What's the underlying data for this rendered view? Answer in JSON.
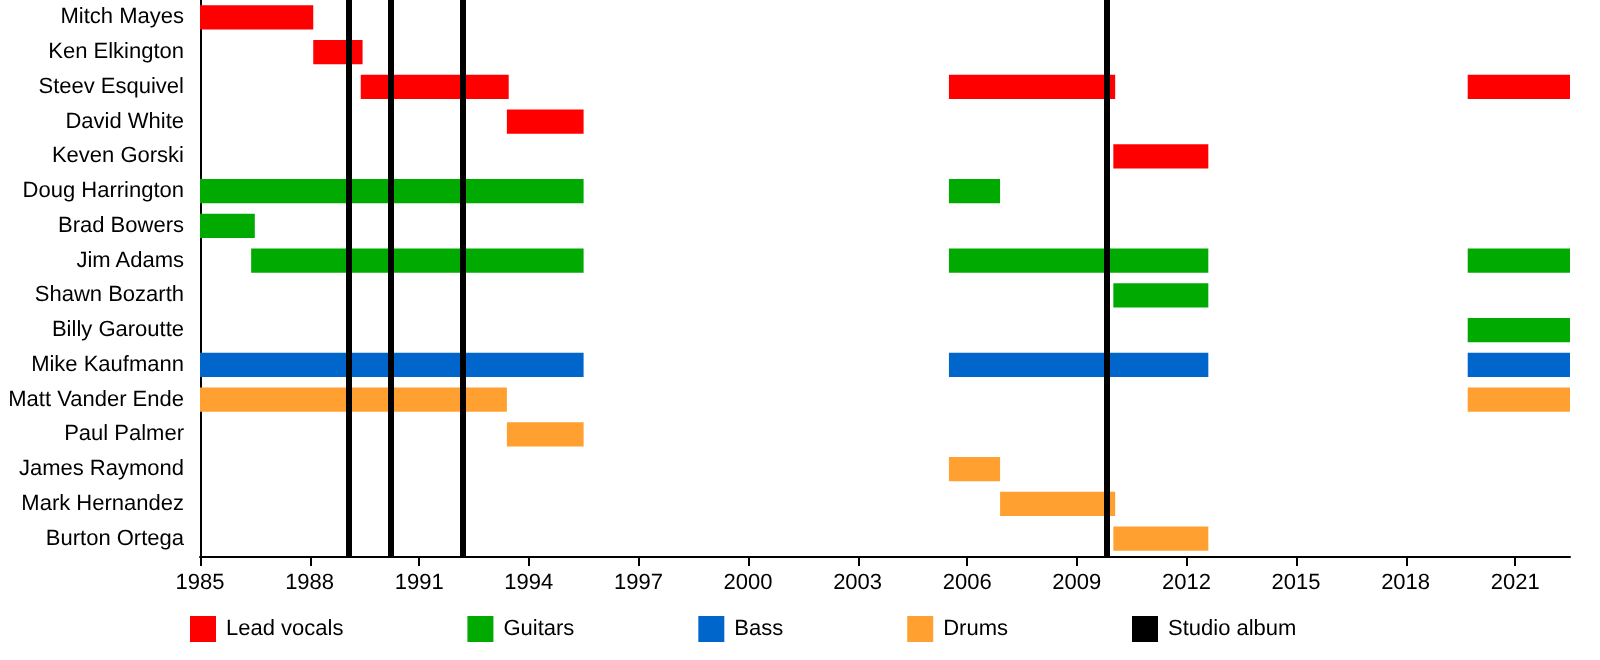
{
  "chart_data": {
    "type": "bar",
    "orientation": "horizontal",
    "categories": [
      "Mitch Mayes",
      "Ken Elkington",
      "Steev Esquivel",
      "David White",
      "Keven Gorski",
      "Doug Harrington",
      "Brad Bowers",
      "Jim Adams",
      "Shawn Bozarth",
      "Billy Garoutte",
      "Mike Kaufmann",
      "Matt Vander Ende",
      "Paul Palmer",
      "James Raymond",
      "Mark Hernandez",
      "Burton Ortega"
    ],
    "series": [
      {
        "name": "Lead vocals",
        "color": "#ff0000",
        "base": [
          1985,
          1988.1,
          1989.4,
          1993.4,
          null,
          null,
          null,
          null,
          null,
          null,
          null,
          null,
          null,
          null,
          null,
          null
        ],
        "values": [
          3.1,
          1.35,
          4.05,
          2.1,
          null,
          null,
          null,
          null,
          null,
          null,
          null,
          null,
          null,
          null,
          null,
          null
        ]
      },
      {
        "color": "#ff0000",
        "base": [
          null,
          null,
          2005.5,
          null,
          2010,
          null,
          null,
          null,
          null,
          null,
          null,
          null,
          null,
          null,
          null,
          null
        ],
        "values": [
          null,
          null,
          4.55,
          null,
          2.6,
          null,
          null,
          null,
          null,
          null,
          null,
          null,
          null,
          null,
          null,
          null
        ]
      },
      {
        "color": "#ff0000",
        "base": [
          null,
          null,
          2019.7,
          null,
          null,
          null,
          null,
          null,
          null,
          null,
          null,
          null,
          null,
          null,
          null,
          null
        ],
        "values": [
          null,
          null,
          2.8,
          null,
          null,
          null,
          null,
          null,
          null,
          null,
          null,
          null,
          null,
          null,
          null,
          null
        ]
      },
      {
        "name": "Guitars",
        "color": "#00aa00",
        "base": [
          null,
          null,
          null,
          null,
          null,
          1985,
          1985,
          1986.4,
          null,
          null,
          null,
          null,
          null,
          null,
          null,
          null
        ],
        "values": [
          null,
          null,
          null,
          null,
          null,
          10.5,
          1.5,
          9.1,
          null,
          null,
          null,
          null,
          null,
          null,
          null,
          null
        ]
      },
      {
        "color": "#00aa00",
        "base": [
          null,
          null,
          null,
          null,
          null,
          2005.5,
          null,
          2005.5,
          2010,
          null,
          null,
          null,
          null,
          null,
          null,
          null
        ],
        "values": [
          null,
          null,
          null,
          null,
          null,
          1.4,
          null,
          7.1,
          2.6,
          null,
          null,
          null,
          null,
          null,
          null,
          null
        ]
      },
      {
        "color": "#00aa00",
        "base": [
          null,
          null,
          null,
          null,
          null,
          null,
          null,
          2019.7,
          null,
          2019.7,
          null,
          null,
          null,
          null,
          null,
          null
        ],
        "values": [
          null,
          null,
          null,
          null,
          null,
          null,
          null,
          2.8,
          null,
          2.8,
          null,
          null,
          null,
          null,
          null,
          null
        ]
      },
      {
        "name": "Bass",
        "color": "#0066cc",
        "base": [
          null,
          null,
          null,
          null,
          null,
          null,
          null,
          null,
          null,
          null,
          1985,
          null,
          null,
          null,
          null,
          null
        ],
        "values": [
          null,
          null,
          null,
          null,
          null,
          null,
          null,
          null,
          null,
          null,
          10.5,
          null,
          null,
          null,
          null,
          null
        ]
      },
      {
        "color": "#0066cc",
        "base": [
          null,
          null,
          null,
          null,
          null,
          null,
          null,
          null,
          null,
          null,
          2005.5,
          null,
          null,
          null,
          null,
          null
        ],
        "values": [
          null,
          null,
          null,
          null,
          null,
          null,
          null,
          null,
          null,
          null,
          7.1,
          null,
          null,
          null,
          null,
          null
        ]
      },
      {
        "color": "#0066cc",
        "base": [
          null,
          null,
          null,
          null,
          null,
          null,
          null,
          null,
          null,
          null,
          2019.7,
          null,
          null,
          null,
          null,
          null
        ],
        "values": [
          null,
          null,
          null,
          null,
          null,
          null,
          null,
          null,
          null,
          null,
          2.8,
          null,
          null,
          null,
          null,
          null
        ]
      },
      {
        "name": "Drums",
        "color": "#ffa030",
        "base": [
          null,
          null,
          null,
          null,
          null,
          null,
          null,
          null,
          null,
          null,
          null,
          1985,
          1993.4,
          null,
          null,
          null
        ],
        "values": [
          null,
          null,
          null,
          null,
          null,
          null,
          null,
          null,
          null,
          null,
          null,
          8.4,
          2.1,
          null,
          null,
          null
        ]
      },
      {
        "color": "#ffa030",
        "base": [
          null,
          null,
          null,
          null,
          null,
          null,
          null,
          null,
          null,
          null,
          null,
          null,
          null,
          2005.5,
          2006.9,
          2010
        ],
        "values": [
          null,
          null,
          null,
          null,
          null,
          null,
          null,
          null,
          null,
          null,
          null,
          null,
          null,
          1.4,
          3.15,
          2.6
        ]
      },
      {
        "color": "#ffa030",
        "base": [
          null,
          null,
          null,
          null,
          null,
          null,
          null,
          null,
          null,
          null,
          null,
          2019.7,
          null,
          null,
          null,
          null
        ],
        "values": [
          null,
          null,
          null,
          null,
          null,
          null,
          null,
          null,
          null,
          null,
          null,
          2.8,
          null,
          null,
          null,
          null
        ]
      }
    ],
    "ref_lines": [
      {
        "axis": "x",
        "value": 1989.05,
        "label": "Studio album",
        "color": "#000000"
      },
      {
        "axis": "x",
        "value": 1990.2,
        "color": "#000000"
      },
      {
        "axis": "x",
        "value": 1992.2,
        "color": "#000000"
      },
      {
        "axis": "x",
        "value": 2009.8,
        "color": "#000000"
      }
    ],
    "xlim": [
      1985,
      2022.5
    ],
    "xticks": [
      1985,
      1988,
      1991,
      1994,
      1997,
      2000,
      2003,
      2006,
      2009,
      2012,
      2015,
      2018,
      2021
    ],
    "grid": false,
    "legend": "bottom"
  }
}
